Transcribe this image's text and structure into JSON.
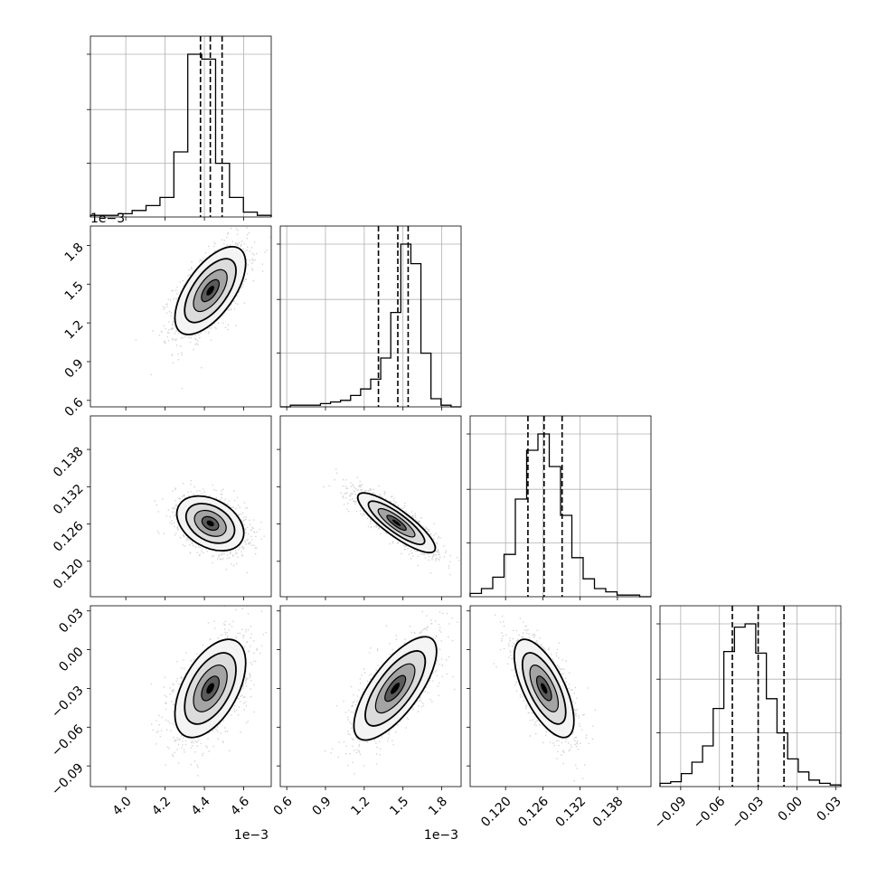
{
  "chart_data": {
    "type": "corner",
    "parameters": [
      {
        "range": [
          3.82,
          4.74
        ],
        "ticks": [
          "4.0",
          "4.2",
          "4.4",
          "4.6"
        ],
        "tick_values": [
          4.0,
          4.2,
          4.4,
          4.6
        ],
        "offset_label": "1e−3",
        "quantiles": [
          4.38,
          4.43,
          4.49
        ],
        "hist": [
          1,
          1,
          2,
          4,
          7,
          12,
          40,
          100,
          97,
          33,
          12,
          3,
          1
        ]
      },
      {
        "range": [
          0.55,
          1.95
        ],
        "ticks": [
          "0.6",
          "0.9",
          "1.2",
          "1.5",
          "1.8"
        ],
        "tick_values": [
          0.6,
          0.9,
          1.2,
          1.5,
          1.8
        ],
        "offset_label": "1e−3",
        "quantiles": [
          1.31,
          1.46,
          1.54
        ],
        "hist": [
          0,
          1,
          1,
          1,
          2,
          3,
          4,
          7,
          11,
          17,
          30,
          58,
          100,
          88,
          33,
          5,
          1,
          0
        ]
      },
      {
        "range": [
          0.1143,
          0.1434
        ],
        "ticks": [
          "0.120",
          "0.126",
          "0.132",
          "0.138"
        ],
        "tick_values": [
          0.12,
          0.126,
          0.132,
          0.138
        ],
        "offset_label": "",
        "quantiles": [
          0.1236,
          0.1262,
          0.1291
        ],
        "hist": [
          2,
          5,
          12,
          26,
          60,
          90,
          100,
          80,
          50,
          24,
          11,
          5,
          3,
          1,
          1,
          0
        ]
      },
      {
        "range": [
          -0.106,
          0.034
        ],
        "ticks": [
          "−0.09",
          "−0.06",
          "−0.03",
          "0.00",
          "0.03"
        ],
        "tick_values": [
          -0.09,
          -0.06,
          -0.03,
          0.0,
          0.03
        ],
        "offset_label": "",
        "quantiles": [
          -0.05,
          -0.03,
          -0.01
        ],
        "hist": [
          2,
          3,
          8,
          15,
          25,
          48,
          83,
          98,
          100,
          82,
          54,
          33,
          17,
          9,
          4,
          2,
          1
        ]
      }
    ],
    "pairs": [
      {
        "row": 1,
        "col": 0,
        "mean": [
          4.43,
          1.45
        ],
        "sd": [
          0.09,
          0.17
        ],
        "corr": 0.62
      },
      {
        "row": 2,
        "col": 0,
        "mean": [
          4.43,
          0.1261
        ],
        "sd": [
          0.085,
          0.0022
        ],
        "corr": -0.35
      },
      {
        "row": 2,
        "col": 1,
        "mean": [
          1.45,
          0.1262
        ],
        "sd": [
          0.15,
          0.0024
        ],
        "corr": -0.85
      },
      {
        "row": 3,
        "col": 0,
        "mean": [
          4.43,
          -0.03
        ],
        "sd": [
          0.09,
          0.019
        ],
        "corr": 0.52
      },
      {
        "row": 3,
        "col": 1,
        "mean": [
          1.44,
          -0.03
        ],
        "sd": [
          0.16,
          0.02
        ],
        "corr": 0.72
      },
      {
        "row": 3,
        "col": 2,
        "mean": [
          0.1262,
          -0.03
        ],
        "sd": [
          0.0024,
          0.019
        ],
        "corr": -0.66
      }
    ],
    "grid": true,
    "colors": {
      "line": "#000000",
      "scatter": "#666666",
      "grid": "#b0b0b0"
    }
  }
}
